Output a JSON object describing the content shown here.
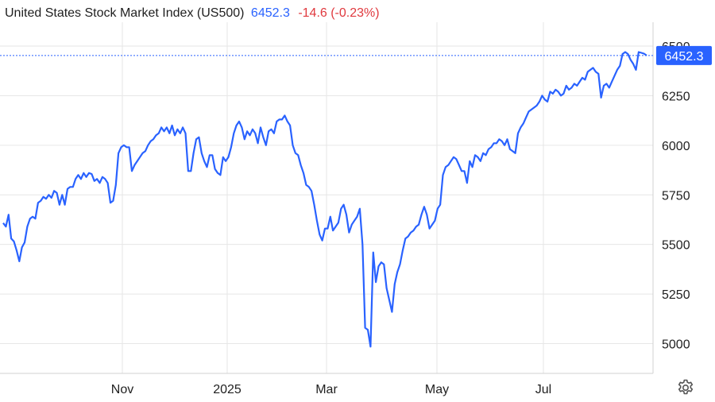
{
  "header": {
    "title": "United States Stock Market Index (US500)",
    "price": "6452.3",
    "change": "-14.6 (-0.23%)"
  },
  "last_price_label": "6452.3",
  "icons": {
    "settings": "gear-icon"
  },
  "colors": {
    "line": "#2962ff",
    "negative": "#e0393e",
    "grid": "#e6e6e6"
  },
  "chart_data": {
    "type": "line",
    "title": "United States Stock Market Index (US500)",
    "xlabel": "",
    "ylabel": "",
    "ylim": [
      4850,
      6620
    ],
    "yticks": [
      5000,
      5250,
      5500,
      5750,
      6000,
      6250,
      6500
    ],
    "ytick_labels": [
      "5000",
      "5250",
      "5500",
      "5750",
      "6000",
      "6250",
      "6500"
    ],
    "xtick_labels": [
      "Nov",
      "2025",
      "Mar",
      "May",
      "Jul"
    ],
    "grid": true,
    "last_value": 6452.3,
    "series": [
      {
        "values": [
          5608,
          5590,
          5650,
          5530,
          5515,
          5470,
          5415,
          5485,
          5510,
          5590,
          5630,
          5640,
          5630,
          5710,
          5720,
          5740,
          5730,
          5750,
          5735,
          5770,
          5760,
          5700,
          5750,
          5700,
          5780,
          5790,
          5790,
          5830,
          5850,
          5830,
          5860,
          5840,
          5860,
          5855,
          5820,
          5830,
          5810,
          5840,
          5830,
          5810,
          5710,
          5720,
          5800,
          5960,
          5990,
          6000,
          5990,
          5990,
          5870,
          5900,
          5920,
          5940,
          5960,
          5970,
          6000,
          6020,
          6030,
          6050,
          6060,
          6090,
          6070,
          6090,
          6060,
          6100,
          6050,
          6080,
          6060,
          6090,
          6060,
          5870,
          5870,
          5960,
          6030,
          6040,
          5960,
          5920,
          5890,
          5950,
          5950,
          5880,
          5860,
          5850,
          5940,
          5920,
          5940,
          5990,
          6060,
          6100,
          6120,
          6090,
          6030,
          6070,
          6050,
          6080,
          6060,
          6010,
          6090,
          6040,
          6000,
          6070,
          6080,
          6060,
          6120,
          6130,
          6130,
          6150,
          6120,
          6100,
          6000,
          5960,
          5950,
          5900,
          5860,
          5800,
          5790,
          5770,
          5700,
          5620,
          5550,
          5520,
          5580,
          5580,
          5640,
          5570,
          5590,
          5610,
          5680,
          5700,
          5650,
          5560,
          5600,
          5620,
          5640,
          5680,
          5500,
          5080,
          5070,
          4985,
          5460,
          5310,
          5390,
          5410,
          5400,
          5280,
          5220,
          5160,
          5300,
          5360,
          5400,
          5470,
          5530,
          5540,
          5560,
          5570,
          5590,
          5600,
          5650,
          5690,
          5650,
          5580,
          5600,
          5620,
          5680,
          5700,
          5850,
          5890,
          5900,
          5920,
          5940,
          5930,
          5900,
          5870,
          5870,
          5810,
          5920,
          5890,
          5950,
          5940,
          5920,
          5960,
          5950,
          5980,
          5990,
          6010,
          6010,
          6030,
          6020,
          6000,
          6030,
          5980,
          5970,
          5960,
          6060,
          6090,
          6110,
          6140,
          6170,
          6180,
          6190,
          6200,
          6220,
          6250,
          6230,
          6220,
          6270,
          6260,
          6280,
          6270,
          6250,
          6260,
          6300,
          6280,
          6290,
          6310,
          6300,
          6320,
          6340,
          6330,
          6370,
          6380,
          6390,
          6370,
          6360,
          6240,
          6300,
          6310,
          6290,
          6320,
          6350,
          6380,
          6400,
          6460,
          6470,
          6460,
          6430,
          6410,
          6380,
          6470,
          6466,
          6462,
          6452.3
        ]
      }
    ]
  }
}
